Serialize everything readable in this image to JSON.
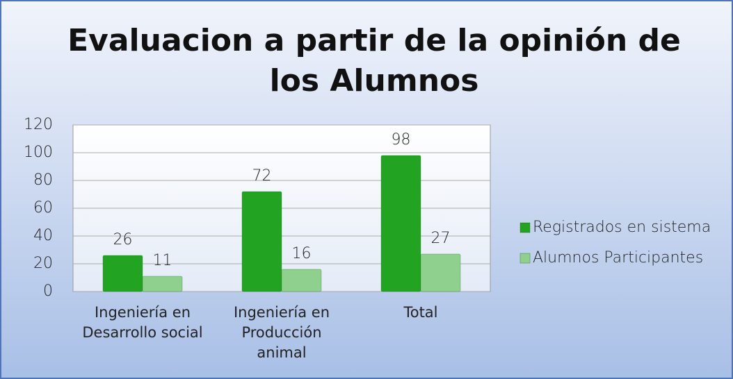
{
  "chart_data": {
    "type": "bar",
    "title": "Evaluacion a partir de la opinión de los Alumnos",
    "categories": [
      "Ingeniería en Desarrollo social",
      "Ingeniería en Producción animal",
      "Total"
    ],
    "series": [
      {
        "name": "Registrados en sistema",
        "color": "#22a322",
        "values": [
          26,
          72,
          98
        ]
      },
      {
        "name": "Alumnos Participantes",
        "color": "#8fd08f",
        "values": [
          11,
          16,
          27
        ]
      }
    ],
    "ylim": [
      0,
      120
    ],
    "yticks": [
      0,
      20,
      40,
      60,
      80,
      100,
      120
    ],
    "grid": true,
    "legend": "right"
  }
}
